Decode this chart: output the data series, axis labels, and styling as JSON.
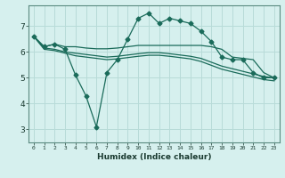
{
  "title": "",
  "xlabel": "Humidex (Indice chaleur)",
  "bg_color": "#d6f0ee",
  "grid_color": "#b8dbd8",
  "line_color": "#1a6b5a",
  "x": [
    0,
    1,
    2,
    3,
    4,
    5,
    6,
    7,
    8,
    9,
    10,
    11,
    12,
    13,
    14,
    15,
    16,
    17,
    18,
    19,
    20,
    21,
    22,
    23
  ],
  "y_spiky": [
    6.6,
    6.2,
    6.3,
    6.1,
    5.1,
    4.3,
    3.1,
    5.2,
    5.7,
    6.5,
    7.3,
    7.5,
    7.1,
    7.3,
    7.2,
    7.1,
    6.8,
    6.4,
    5.8,
    5.7,
    5.7,
    5.2,
    5.0,
    5.0
  ],
  "y_upper": [
    6.6,
    6.2,
    6.3,
    6.2,
    6.2,
    6.15,
    6.12,
    6.12,
    6.15,
    6.2,
    6.25,
    6.25,
    6.25,
    6.25,
    6.25,
    6.25,
    6.25,
    6.2,
    6.1,
    5.8,
    5.75,
    5.7,
    5.2,
    5.0
  ],
  "y_mid": [
    6.6,
    6.15,
    6.1,
    6.0,
    5.95,
    5.9,
    5.85,
    5.8,
    5.83,
    5.88,
    5.93,
    5.97,
    5.97,
    5.93,
    5.88,
    5.83,
    5.75,
    5.6,
    5.45,
    5.35,
    5.25,
    5.15,
    5.05,
    5.0
  ],
  "y_lower": [
    6.6,
    6.1,
    6.05,
    5.95,
    5.85,
    5.8,
    5.75,
    5.7,
    5.73,
    5.78,
    5.83,
    5.87,
    5.87,
    5.83,
    5.78,
    5.73,
    5.63,
    5.48,
    5.33,
    5.23,
    5.13,
    5.03,
    4.93,
    4.88
  ],
  "ylim": [
    2.5,
    7.8
  ],
  "yticks": [
    3,
    4,
    5,
    6,
    7
  ],
  "xticks": [
    0,
    1,
    2,
    3,
    4,
    5,
    6,
    7,
    8,
    9,
    10,
    11,
    12,
    13,
    14,
    15,
    16,
    17,
    18,
    19,
    20,
    21,
    22,
    23
  ]
}
